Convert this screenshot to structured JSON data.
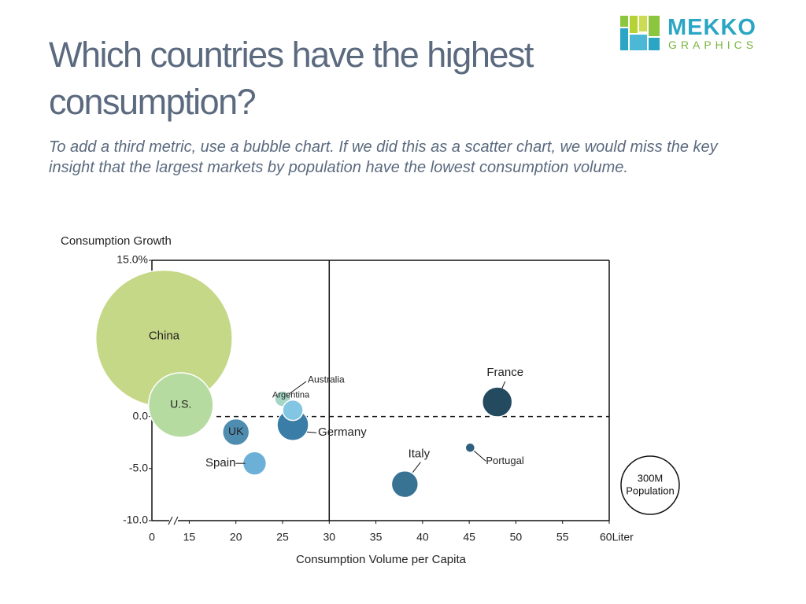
{
  "logo": {
    "name": "MEKKO",
    "sub": "GRAPHICS"
  },
  "chart_data": {
    "type": "bubble",
    "title": "Which countries have the highest consumption?",
    "subtitle": "To add a third metric, use a bubble chart. If we did this as a scatter chart, we would miss the key insight that the largest markets by population have the lowest consumption volume.",
    "x_label": "Consumption Volume per Capita",
    "y_label": "Consumption Growth",
    "xlim": [
      11,
      60
    ],
    "ylim": [
      -10,
      15
    ],
    "x_break_label": "0",
    "xticks": [
      15,
      20,
      25,
      30,
      35,
      40,
      45,
      50,
      55,
      {
        "value": 60,
        "label": "60Liter"
      }
    ],
    "yticks": [
      {
        "value": 15,
        "label": "15.0%"
      },
      {
        "value": 0,
        "label": "0.0"
      },
      {
        "value": -5,
        "label": "-5.0"
      },
      {
        "value": -10,
        "label": "-10.0"
      }
    ],
    "reference_lines": {
      "x": 30,
      "y": 0
    },
    "size_legend": {
      "value": 300,
      "label": [
        "300M",
        "Population"
      ]
    },
    "series": [
      {
        "name": "China",
        "color": "#c5d887",
        "x": 12.3,
        "y": 7.5,
        "size": 1650
      },
      {
        "name": "U.S.",
        "color": "#b6dba1",
        "x": 14.1,
        "y": 1.1,
        "size": 370
      },
      {
        "name": "UK",
        "color": "#4f8db0",
        "x": 20.0,
        "y": -1.5,
        "size": 63
      },
      {
        "name": "Spain",
        "color": "#6cb0d8",
        "x": 22.0,
        "y": -4.5,
        "size": 49
      },
      {
        "name": "Australia",
        "color": "#a6d5c6",
        "x": 25.0,
        "y": 1.7,
        "size": 22
      },
      {
        "name": "Germany",
        "color": "#3a7ea8",
        "x": 26.1,
        "y": -0.8,
        "size": 88
      },
      {
        "name": "Argentina",
        "color": "#82c6e3",
        "x": 26.1,
        "y": 0.6,
        "size": 37
      },
      {
        "name": "Italy",
        "color": "#387393",
        "x": 38.1,
        "y": -6.5,
        "size": 63
      },
      {
        "name": "Portugal",
        "color": "#2f5f7e",
        "x": 45.1,
        "y": -3.0,
        "size": 8
      },
      {
        "name": "France",
        "color": "#244a60",
        "x": 48.0,
        "y": 1.4,
        "size": 79
      }
    ]
  }
}
